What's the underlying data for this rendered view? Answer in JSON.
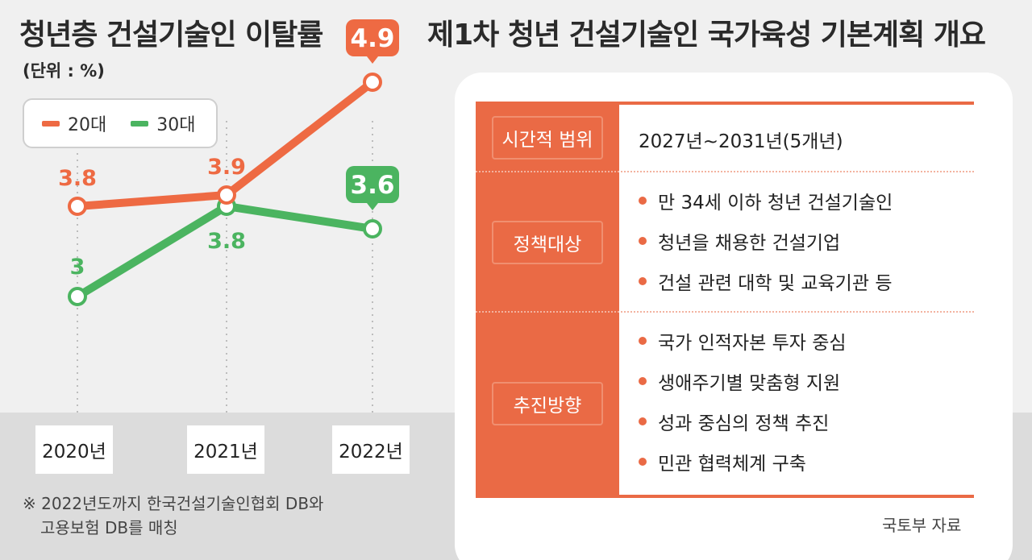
{
  "left_panel": {
    "title": "청년층 건설기술인 이탈률",
    "unit": "(단위 : %)",
    "footnote_line1": "※ 2022년도까지 한국건설기술인협회 DB와",
    "footnote_line2": "고용보험 DB를 매칭"
  },
  "chart_data": {
    "type": "line",
    "title": "청년층 건설기술인 이탈률",
    "unit": "(단위 : %)",
    "categories": [
      "2020년",
      "2021년",
      "2022년"
    ],
    "series": [
      {
        "name": "20대",
        "color": "#ee6a43",
        "values": [
          3.8,
          3.9,
          4.9
        ],
        "labels": [
          "3.8",
          "3.9",
          "4.9"
        ]
      },
      {
        "name": "30대",
        "color": "#4bb460",
        "values": [
          3.0,
          3.8,
          3.6
        ],
        "labels": [
          "3",
          "3.8",
          "3.6"
        ]
      }
    ],
    "ylim": [
      2.2,
      5.2
    ],
    "grid": false,
    "legend_position": "top-left",
    "highlight_last_point": true
  },
  "right_panel": {
    "title": "제1차 청년 건설기술인 국가육성 기본계획 개요",
    "source": "국토부 자료",
    "accent_color": "#ea6a45",
    "rows": [
      {
        "label": "시간적 범위",
        "text": "2027년~2031년(5개년)"
      },
      {
        "label": "정책대상",
        "items": [
          "만 34세 이하 청년 건설기술인",
          "청년을 채용한 건설기업",
          "건설 관련 대학 및 교육기관 등"
        ]
      },
      {
        "label": "추진방향",
        "items": [
          "국가 인적자본 투자 중심",
          "생애주기별 맞춤형 지원",
          "성과 중심의 정책 추진",
          "민관 협력체계 구축"
        ]
      }
    ]
  }
}
